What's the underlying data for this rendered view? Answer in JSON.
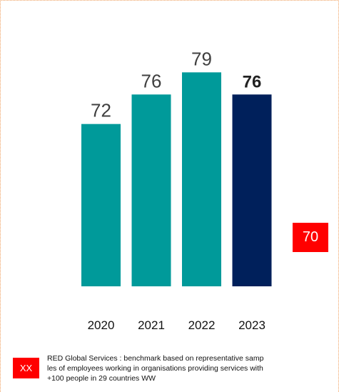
{
  "colors": {
    "bar": "#009a9a",
    "bar_highlight": "#00205b",
    "benchmark": "#ff0000",
    "value_label": "#404040",
    "value_label_highlight": "#222222"
  },
  "chart_data": {
    "type": "bar",
    "categories": [
      "2020",
      "2021",
      "2022",
      "2023"
    ],
    "values": [
      72,
      76,
      79,
      76
    ],
    "highlight_index": 3,
    "value_labels": [
      "72",
      "76",
      "79",
      "76"
    ],
    "ylim": [
      50,
      80
    ],
    "grid": false,
    "benchmark": {
      "label": "70",
      "value": 70
    }
  },
  "legend": {
    "swatch_label": "XX",
    "text_lines": [
      "RED Global Services : benchmark based on representative samp",
      "les of employees working in organisations providing services with",
      "+100 people in 29 countries WW"
    ]
  }
}
